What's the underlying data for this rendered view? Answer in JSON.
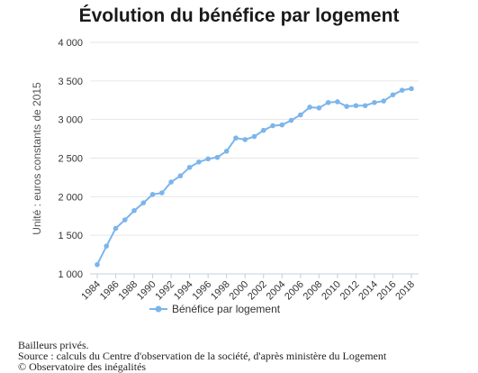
{
  "chart_data": {
    "type": "line",
    "title": "Évolution du bénéfice par logement",
    "ylabel": "Unité : euros constants de 2015",
    "xlabel": "",
    "ylim": [
      1000,
      4000
    ],
    "y_ticks": [
      "1 000",
      "1 500",
      "2 000",
      "2 500",
      "3 000",
      "3 500",
      "4 000"
    ],
    "x_ticks": [
      "1984",
      "1986",
      "1988",
      "1990",
      "1992",
      "1994",
      "1996",
      "1998",
      "2000",
      "2002",
      "2004",
      "2006",
      "2008",
      "2010",
      "2012",
      "2014",
      "2016",
      "2018"
    ],
    "grid": "horizontal",
    "legend_position": "bottom",
    "color": "#7cb5ec",
    "x": [
      1984,
      1985,
      1986,
      1987,
      1988,
      1989,
      1990,
      1991,
      1992,
      1993,
      1994,
      1995,
      1996,
      1997,
      1998,
      1999,
      2000,
      2001,
      2002,
      2003,
      2004,
      2005,
      2006,
      2007,
      2008,
      2009,
      2010,
      2011,
      2012,
      2013,
      2014,
      2015,
      2016,
      2017,
      2018
    ],
    "series": [
      {
        "name": "Bénéfice par logement",
        "values": [
          1120,
          1360,
          1590,
          1700,
          1820,
          1920,
          2030,
          2050,
          2190,
          2270,
          2380,
          2450,
          2490,
          2510,
          2590,
          2760,
          2740,
          2780,
          2860,
          2920,
          2930,
          2990,
          3060,
          3160,
          3150,
          3220,
          3230,
          3170,
          3180,
          3180,
          3220,
          3240,
          3320,
          3380,
          3400
        ]
      }
    ]
  },
  "footer": {
    "line1": "Bailleurs privés.",
    "line2": "Source : calculs du Centre d'observation de la société, d'après ministère du Logement",
    "line3": "© Observatoire des inégalités"
  }
}
